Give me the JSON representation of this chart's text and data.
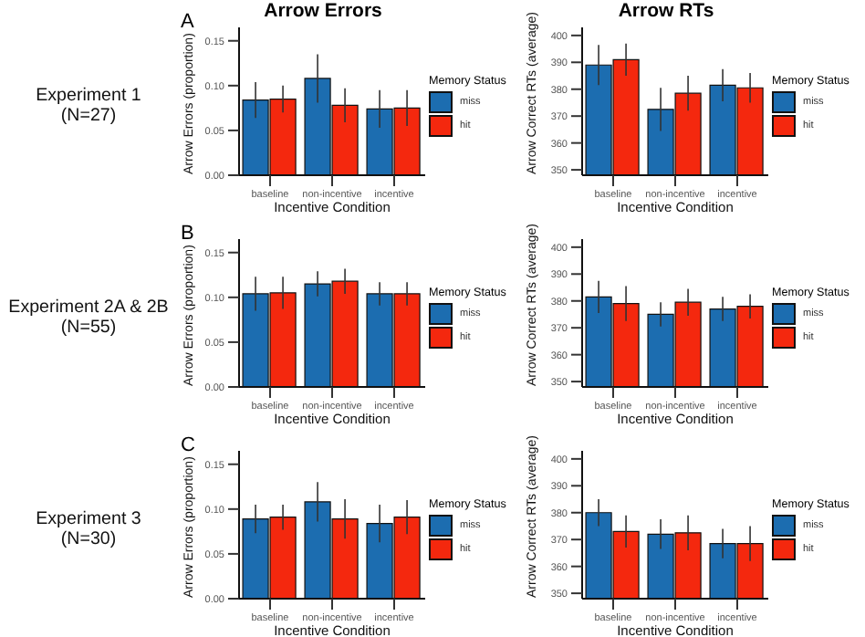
{
  "chart_data": [
    {
      "type": "bar",
      "title": "Arrow Errors",
      "xlabel": "Incentive Condition",
      "ylabel": "Arrow Errors (proportion)",
      "legend_title": "Memory Status",
      "legend": "right",
      "categories": [
        "baseline",
        "non-incentive",
        "incentive"
      ],
      "ylim": [
        0,
        0.165
      ],
      "yticks": [
        {
          "value": 0,
          "label": "0.00"
        },
        {
          "value": 0.05,
          "label": "0.05"
        },
        {
          "value": 0.1,
          "label": "0.10"
        },
        {
          "value": 0.15,
          "label": "0.15"
        }
      ],
      "annotations": [
        "A",
        "Experiment 1",
        "(N=27)"
      ],
      "series": [
        {
          "name": "miss",
          "color": "#1c6db0",
          "values": [
            0.084,
            0.108,
            0.074
          ],
          "errors": [
            0.02,
            0.027,
            0.021
          ]
        },
        {
          "name": "hit",
          "color": "#f4280e",
          "values": [
            0.085,
            0.078,
            0.075
          ],
          "errors": [
            0.015,
            0.019,
            0.02
          ]
        }
      ]
    },
    {
      "type": "bar",
      "title": "Arrow RTs",
      "xlabel": "Incentive Condition",
      "ylabel": "Arrow Correct RTs (average)",
      "legend_title": "Memory Status",
      "legend": "right",
      "categories": [
        "baseline",
        "non-incentive",
        "incentive"
      ],
      "ylim": [
        348,
        403
      ],
      "yticks": [
        350,
        360,
        370,
        380,
        390,
        400
      ],
      "series": [
        {
          "name": "miss",
          "color": "#1c6db0",
          "values": [
            389,
            372.5,
            381.5
          ],
          "errors": [
            7.5,
            8,
            6
          ]
        },
        {
          "name": "hit",
          "color": "#f4280e",
          "values": [
            391,
            378.5,
            380.5
          ],
          "errors": [
            6,
            6.5,
            5.5
          ]
        }
      ]
    },
    {
      "type": "bar",
      "xlabel": "Incentive Condition",
      "ylabel": "Arrow Errors (proportion)",
      "legend_title": "Memory Status",
      "legend": "right",
      "categories": [
        "baseline",
        "non-incentive",
        "incentive"
      ],
      "ylim": [
        0,
        0.165
      ],
      "yticks": [
        {
          "value": 0,
          "label": "0.00"
        },
        {
          "value": 0.05,
          "label": "0.05"
        },
        {
          "value": 0.1,
          "label": "0.10"
        },
        {
          "value": 0.15,
          "label": "0.15"
        }
      ],
      "annotations": [
        "B",
        "Experiment 2A & 2B",
        "(N=55)"
      ],
      "series": [
        {
          "name": "miss",
          "color": "#1c6db0",
          "values": [
            0.104,
            0.115,
            0.104
          ],
          "errors": [
            0.019,
            0.014,
            0.013
          ]
        },
        {
          "name": "hit",
          "color": "#f4280e",
          "values": [
            0.105,
            0.118,
            0.104
          ],
          "errors": [
            0.018,
            0.014,
            0.013
          ]
        }
      ]
    },
    {
      "type": "bar",
      "xlabel": "Incentive Condition",
      "ylabel": "Arrow Correct RTs (average)",
      "legend_title": "Memory Status",
      "legend": "right",
      "categories": [
        "baseline",
        "non-incentive",
        "incentive"
      ],
      "ylim": [
        348,
        403
      ],
      "yticks": [
        350,
        360,
        370,
        380,
        390,
        400
      ],
      "series": [
        {
          "name": "miss",
          "color": "#1c6db0",
          "values": [
            381.5,
            375,
            377
          ],
          "errors": [
            6,
            4.5,
            4.5
          ]
        },
        {
          "name": "hit",
          "color": "#f4280e",
          "values": [
            379,
            379.5,
            378
          ],
          "errors": [
            6.5,
            5,
            4.5
          ]
        }
      ]
    },
    {
      "type": "bar",
      "xlabel": "Incentive Condition",
      "ylabel": "Arrow Errors (proportion)",
      "legend_title": "Memory Status",
      "legend": "right",
      "categories": [
        "baseline",
        "non-incentive",
        "incentive"
      ],
      "ylim": [
        0,
        0.165
      ],
      "yticks": [
        {
          "value": 0,
          "label": "0.00"
        },
        {
          "value": 0.05,
          "label": "0.05"
        },
        {
          "value": 0.1,
          "label": "0.10"
        },
        {
          "value": 0.15,
          "label": "0.15"
        }
      ],
      "annotations": [
        "C",
        "Experiment 3",
        "(N=30)"
      ],
      "series": [
        {
          "name": "miss",
          "color": "#1c6db0",
          "values": [
            0.089,
            0.108,
            0.084
          ],
          "errors": [
            0.016,
            0.022,
            0.021
          ]
        },
        {
          "name": "hit",
          "color": "#f4280e",
          "values": [
            0.091,
            0.089,
            0.091
          ],
          "errors": [
            0.014,
            0.022,
            0.019
          ]
        }
      ]
    },
    {
      "type": "bar",
      "xlabel": "Incentive Condition",
      "ylabel": "Arrow Correct RTs (average)",
      "legend_title": "Memory Status",
      "legend": "right",
      "categories": [
        "baseline",
        "non-incentive",
        "incentive"
      ],
      "ylim": [
        348,
        403
      ],
      "yticks": [
        350,
        360,
        370,
        380,
        390,
        400
      ],
      "series": [
        {
          "name": "miss",
          "color": "#1c6db0",
          "values": [
            380,
            372,
            368.5
          ],
          "errors": [
            5,
            5.5,
            5.5
          ]
        },
        {
          "name": "hit",
          "color": "#f4280e",
          "values": [
            373,
            372.5,
            368.5
          ],
          "errors": [
            6,
            6.5,
            6.5
          ]
        }
      ]
    }
  ]
}
